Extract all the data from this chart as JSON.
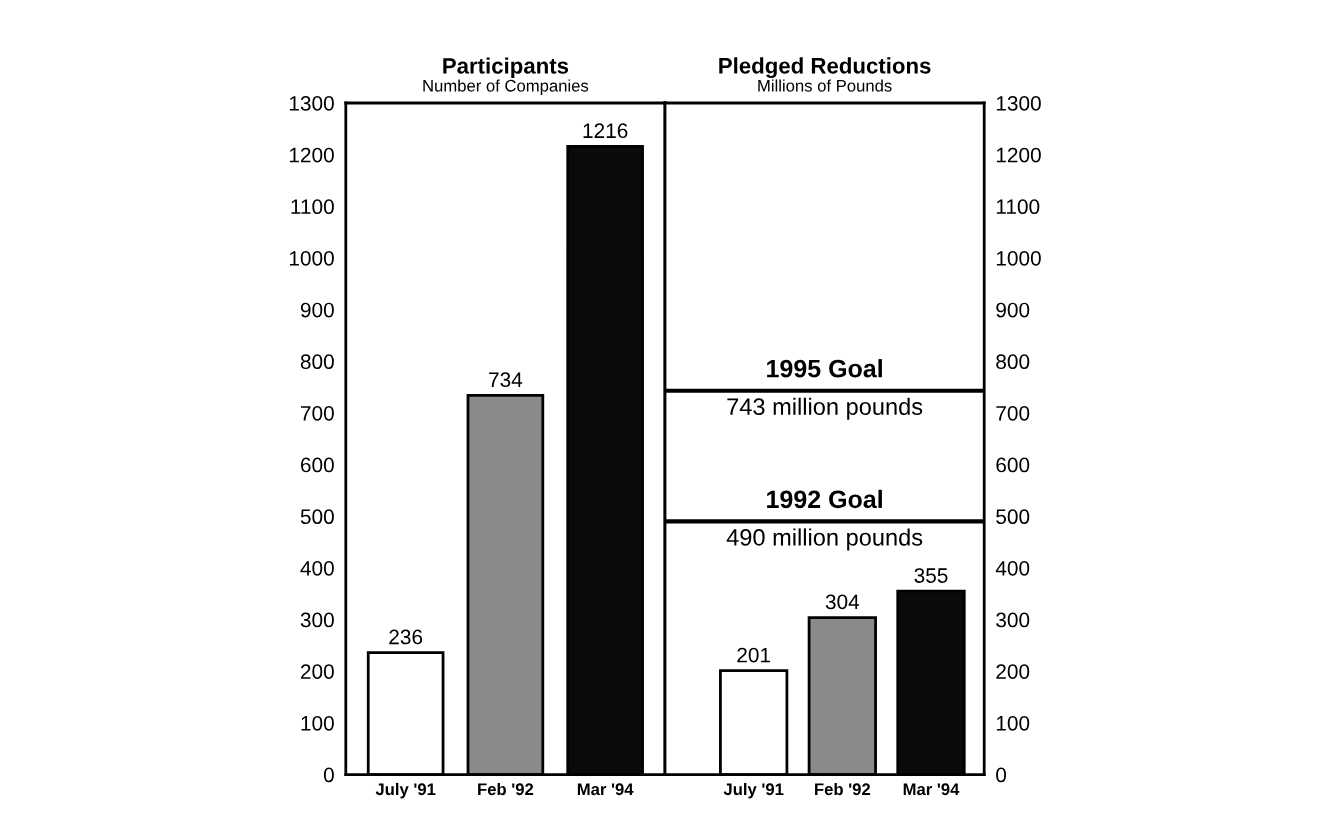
{
  "chart_data": [
    {
      "type": "bar",
      "title": "Participants",
      "subtitle": "Number of Companies",
      "categories": [
        "July '91",
        "Feb '92",
        "Mar '94"
      ],
      "values": [
        236,
        734,
        1216
      ],
      "colors": [
        "#ffffff",
        "#8a8a8a",
        "#0a0a0a"
      ],
      "ylim": [
        0,
        1300
      ],
      "yticks": [
        0,
        100,
        200,
        300,
        400,
        500,
        600,
        700,
        800,
        900,
        1000,
        1100,
        1200,
        1300
      ],
      "data_labels": true,
      "grid": false,
      "legend": false
    },
    {
      "type": "bar",
      "title": "Pledged Reductions",
      "subtitle": "Millions of Pounds",
      "categories": [
        "July '91",
        "Feb '92",
        "Mar '94"
      ],
      "values": [
        201,
        304,
        355
      ],
      "colors": [
        "#ffffff",
        "#8a8a8a",
        "#0a0a0a"
      ],
      "ylim": [
        0,
        1300
      ],
      "yticks": [
        0,
        100,
        200,
        300,
        400,
        500,
        600,
        700,
        800,
        900,
        1000,
        1100,
        1200,
        1300
      ],
      "data_labels": true,
      "grid": false,
      "legend": false,
      "ref_lines": [
        {
          "axis": "y",
          "value": 743,
          "label": "1995 Goal",
          "color": "#000000"
        },
        {
          "axis": "y",
          "value": 490,
          "label": "1992 Goal",
          "color": "#000000"
        }
      ],
      "annotations": [
        {
          "text": "743 million pounds",
          "y": 743
        },
        {
          "text": "490 million pounds",
          "y": 490
        }
      ]
    }
  ]
}
